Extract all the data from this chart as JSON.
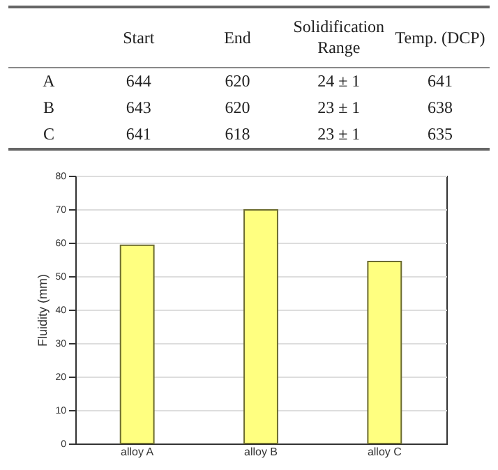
{
  "chart_data": [
    {
      "type": "other",
      "categories": [
        "Start",
        "End",
        "Solidification Range",
        "Temp. (DCP)"
      ],
      "y_categories": [
        "A",
        "B",
        "C"
      ],
      "cell_labels": [
        [
          "644",
          "620",
          "24 ± 1",
          "641"
        ],
        [
          "643",
          "620",
          "23 ± 1",
          "638"
        ],
        [
          "641",
          "618",
          "23 ± 1",
          "635"
        ]
      ]
    },
    {
      "type": "bar",
      "ylabel": "Fluidity (mm)",
      "categories": [
        "alloy A",
        "alloy B",
        "alloy C"
      ],
      "values": [
        59.2,
        69.8,
        54.4
      ],
      "color": "#ffff80",
      "ylim": [
        0,
        80
      ],
      "yticks": [
        0,
        10,
        20,
        30,
        40,
        50,
        60,
        70,
        80
      ],
      "grid": "y"
    }
  ]
}
